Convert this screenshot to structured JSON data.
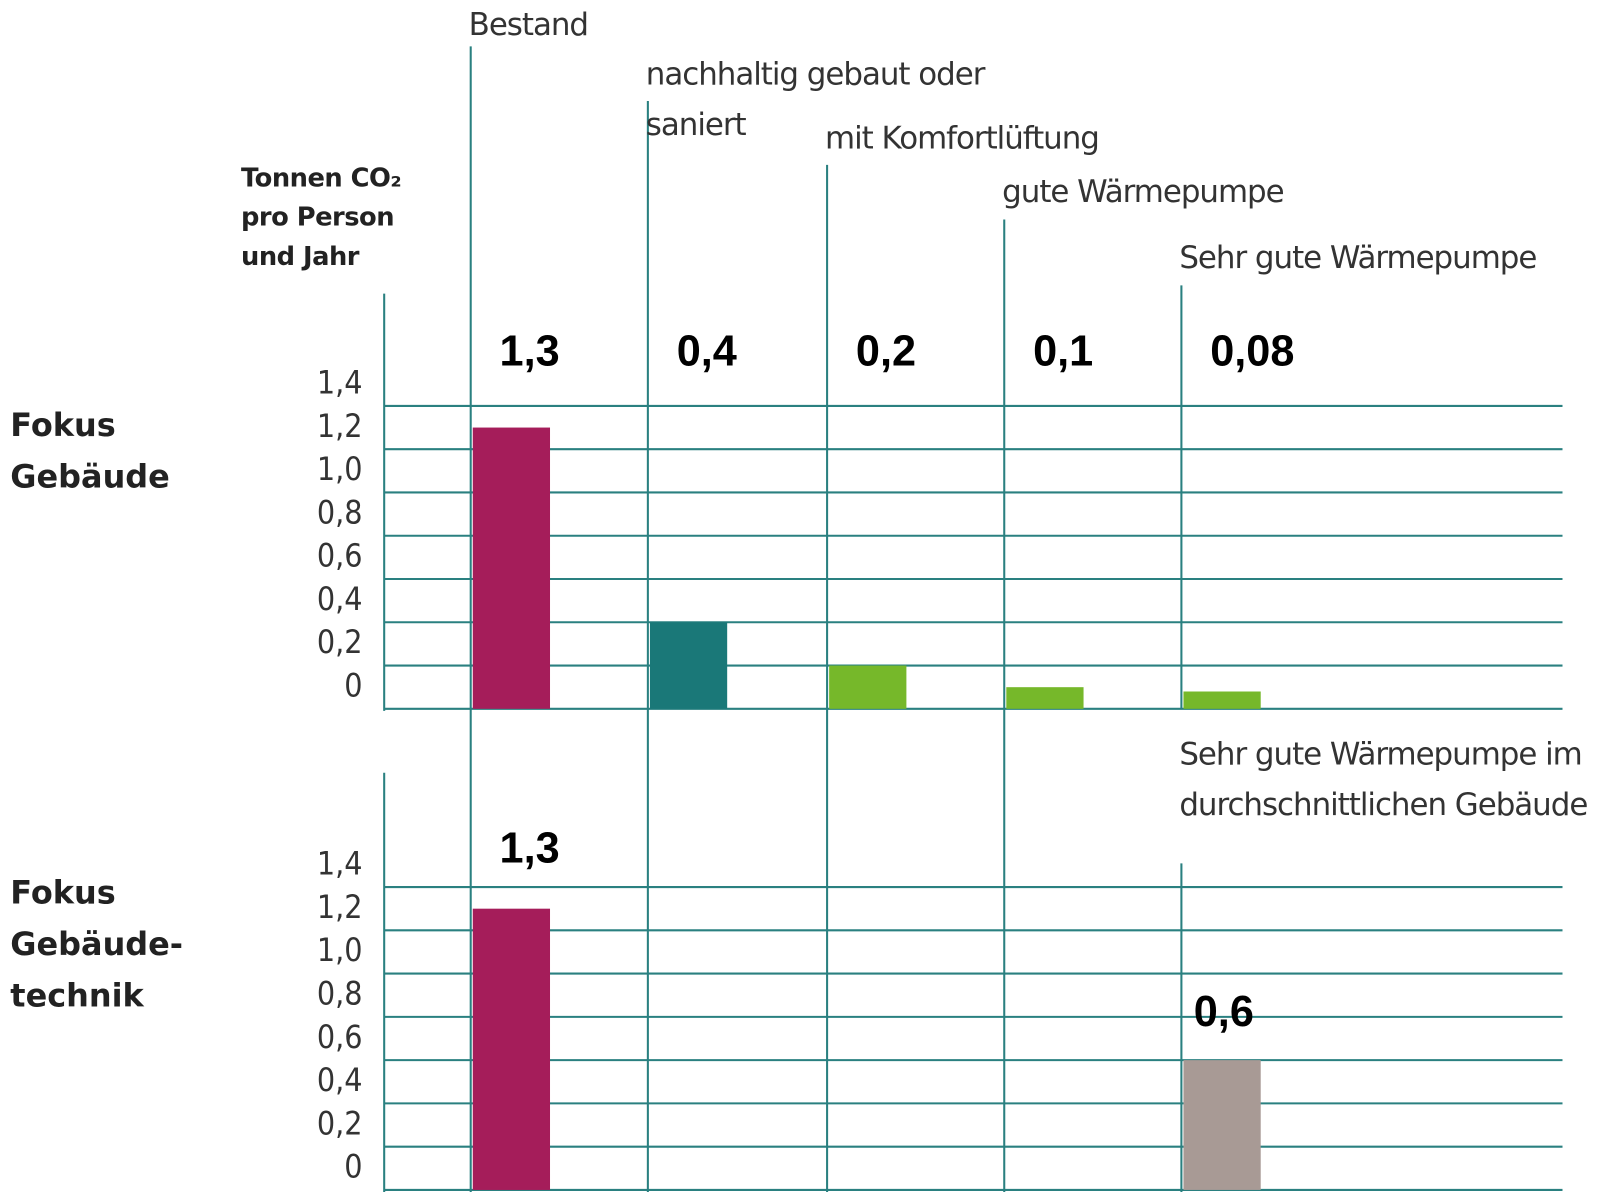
{
  "chart_data": [
    {
      "type": "bar",
      "title": "Fokus Gebäude",
      "y_label": "Tonnen CO₂ pro Person und Jahr",
      "categories": [
        "Bestand",
        "nachhaltig gebaut oder saniert",
        "mit Komfortlüftung",
        "gute Wärmepumpe",
        "Sehr gute Wärmepumpe"
      ],
      "values": [
        1.3,
        0.4,
        0.2,
        0.1,
        0.08
      ],
      "value_labels": [
        "1,3",
        "0,4",
        "0,2",
        "0,1",
        "0,08"
      ],
      "colors": [
        "#a51d5a",
        "#1a7878",
        "#76b82a",
        "#76b82a",
        "#76b82a"
      ],
      "ylim": [
        0,
        1.4
      ],
      "yticks": [
        0,
        {
          "value": 0.2,
          "label": "0,2"
        },
        {
          "value": 0.4,
          "label": "0,4"
        },
        {
          "value": 0.6,
          "label": "0,6"
        },
        {
          "value": 0.8,
          "label": "0,8"
        },
        {
          "value": 1.0,
          "label": "1,0"
        },
        {
          "value": 1.2,
          "label": "1,2"
        },
        {
          "value": 1.4,
          "label": "1,4"
        }
      ],
      "grid": true
    },
    {
      "type": "bar",
      "title": "Fokus Gebäude-technik",
      "categories": [
        null,
        null,
        null,
        null,
        "Sehr gute Wärmepumpe im durchschnittlichen Gebäude"
      ],
      "values": [
        1.3,
        null,
        null,
        null,
        0.6
      ],
      "value_labels": [
        "1,3",
        null,
        null,
        null,
        "0,6"
      ],
      "colors": [
        "#a51d5a",
        null,
        null,
        null,
        "#a89a95"
      ],
      "ylim": [
        0,
        1.4
      ],
      "yticks": [
        0,
        {
          "value": 0.2,
          "label": "0,2"
        },
        {
          "value": 0.4,
          "label": "0,4"
        },
        {
          "value": 0.6,
          "label": "0,6"
        },
        {
          "value": 0.8,
          "label": "0,8"
        },
        {
          "value": 1.0,
          "label": "1,0"
        },
        {
          "value": 1.2,
          "label": "1,2"
        },
        {
          "value": 1.4,
          "label": "1,4"
        }
      ],
      "grid": true
    }
  ]
}
